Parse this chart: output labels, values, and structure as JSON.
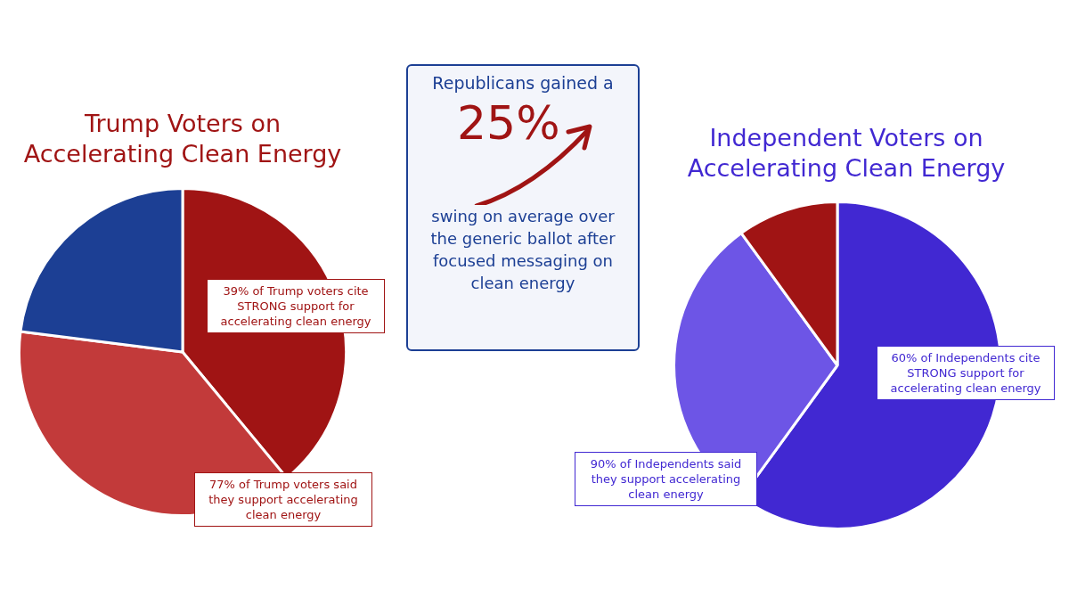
{
  "chart_data": [
    {
      "type": "pie",
      "title": "Trump Voters on Accelerating Clean Energy",
      "categories": [
        null,
        null,
        null
      ],
      "values": [
        39,
        38,
        23
      ],
      "colors": [
        "#a01414",
        "#c23a3a",
        "#1c3f94"
      ],
      "annotations": [
        "39% of Trump voters cite STRONG support for accelerating clean energy",
        "77% of Trump voters said they support accelerating clean energy"
      ]
    },
    {
      "type": "other",
      "title": "Republicans gained a",
      "annotations": [
        "25%",
        "swing on average over the generic ballot after focused messaging on clean energy"
      ]
    },
    {
      "type": "pie",
      "title": "Independent Voters on Accelerating Clean Energy",
      "categories": [
        null,
        null,
        null
      ],
      "values": [
        60,
        30,
        10
      ],
      "colors": [
        "#4128d2",
        "#6d55e6",
        "#a01414"
      ],
      "annotations": [
        "60% of Independents cite STRONG support for accelerating clean energy",
        "90% of Independents said they support accelerating clean energy"
      ]
    }
  ]
}
